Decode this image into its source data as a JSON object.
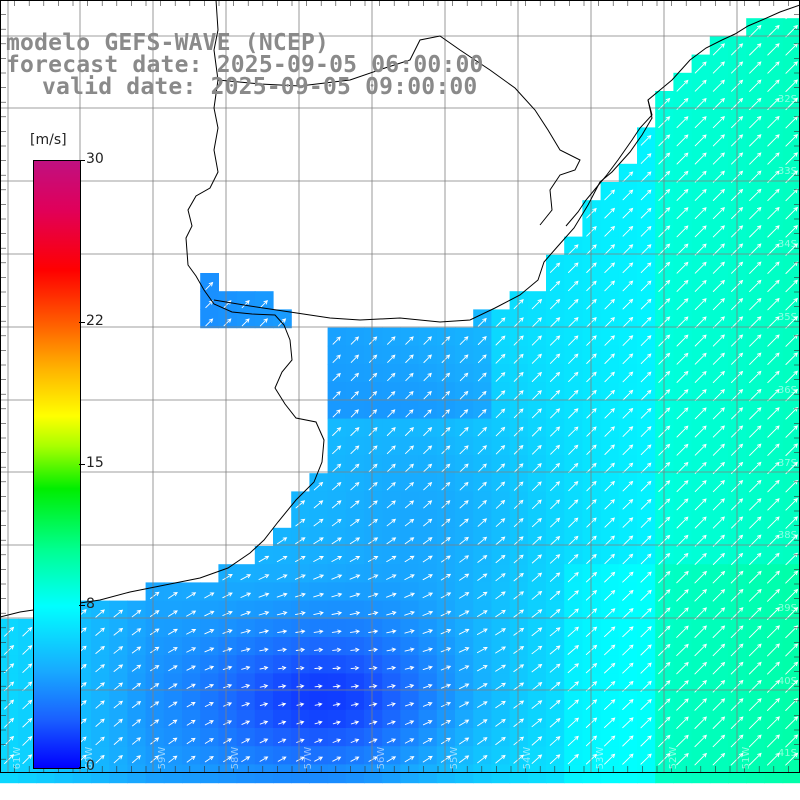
{
  "header": {
    "line1": "modelo GEFS-WAVE (NCEP)",
    "line2": "forecast date: 2025-09-05 06:00:00",
    "line3": "valid date: 2025-09-05 09:00:00"
  },
  "colorbar": {
    "unit": "[m/s]",
    "ticks": [
      "30",
      "22",
      "15",
      "8",
      "0"
    ],
    "tick_values": [
      30,
      22,
      15,
      8,
      0
    ],
    "range": [
      0,
      30
    ]
  },
  "map": {
    "lon_labels": [
      "61W",
      "60W",
      "59W",
      "58W",
      "57W",
      "56W",
      "55W",
      "54W",
      "53W",
      "52W",
      "51W"
    ],
    "lat_labels": [
      "32S",
      "33S",
      "34S",
      "35S",
      "36S",
      "37S",
      "38S",
      "39S",
      "40S",
      "41S"
    ],
    "colors": {
      "land": "#ffffff",
      "grid": "#7f7f7f",
      "coast": "#000000",
      "arrow": "#ffffff"
    }
  }
}
